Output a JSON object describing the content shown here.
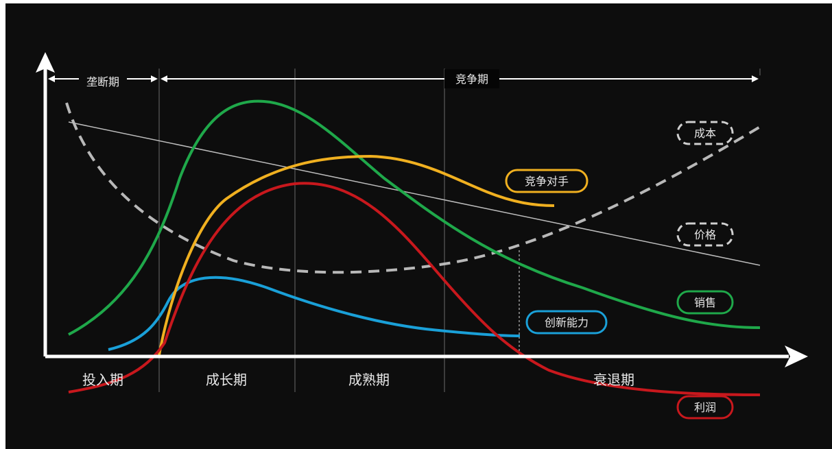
{
  "phases": {
    "introduction": "投入期",
    "growth": "成长期",
    "maturity": "成熟期",
    "decline": "衰退期"
  },
  "periods": {
    "monopoly": "垄断期",
    "competition": "竞争期"
  },
  "curves": {
    "cost": {
      "label": "成本",
      "color": "#b0b0b0"
    },
    "price": {
      "label": "价格",
      "color": "#b0b0b0"
    },
    "sales": {
      "label": "销售",
      "color": "#1fa84a"
    },
    "competitors": {
      "label": "竞争对手",
      "color": "#f0b020"
    },
    "innovation": {
      "label": "创新能力",
      "color": "#1aa0d8"
    },
    "profit": {
      "label": "利润",
      "color": "#c8181d"
    }
  }
}
